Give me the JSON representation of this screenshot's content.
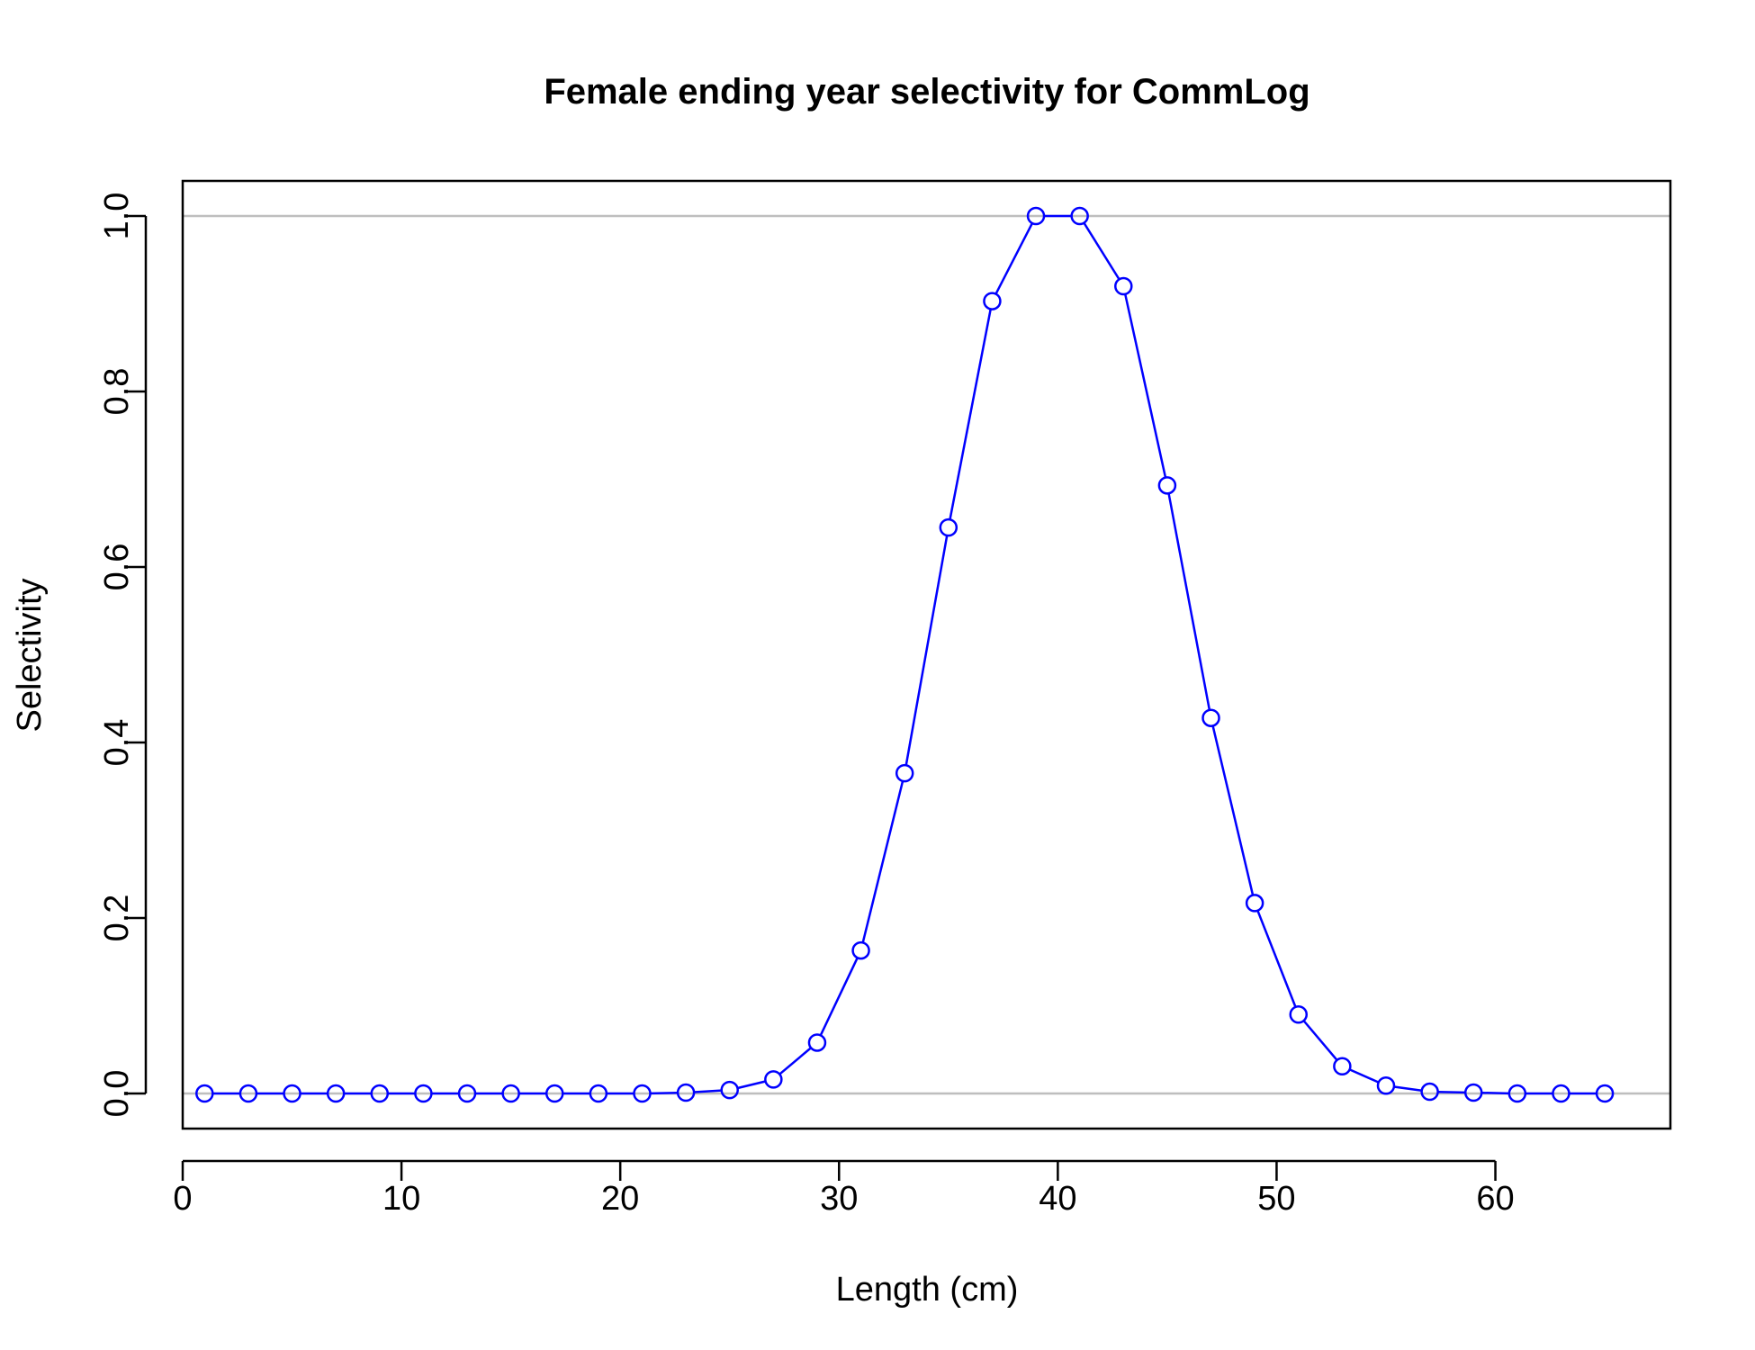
{
  "chart_data": {
    "type": "line",
    "title": "Female ending year selectivity for CommLog",
    "xlabel": "Length (cm)",
    "ylabel": "Selectivity",
    "xlim": [
      0,
      68
    ],
    "ylim": [
      -0.04,
      1.04
    ],
    "xticks": [
      "0",
      "10",
      "20",
      "30",
      "40",
      "50",
      "60"
    ],
    "yticks": [
      "0.0",
      "0.2",
      "0.4",
      "0.6",
      "0.8",
      "1.0"
    ],
    "reference_lines_y": [
      0,
      1
    ],
    "grid": false,
    "legend": "none",
    "series": [
      {
        "color": "#0000ff",
        "marker": "open-circle",
        "x": [
          1,
          3,
          5,
          7,
          9,
          11,
          13,
          15,
          17,
          19,
          21,
          23,
          25,
          27,
          29,
          31,
          33,
          35,
          37,
          39,
          41,
          43,
          45,
          47,
          49,
          51,
          53,
          55,
          57,
          59,
          61,
          63,
          65
        ],
        "y": [
          0,
          0,
          0,
          0,
          0,
          0,
          0,
          0,
          0,
          0,
          0,
          0.001,
          0.004,
          0.016,
          0.058,
          0.163,
          0.365,
          0.645,
          0.903,
          1.0,
          1.0,
          0.92,
          0.693,
          0.428,
          0.217,
          0.09,
          0.031,
          0.009,
          0.002,
          0.001,
          0,
          0,
          0
        ]
      }
    ],
    "colors": {
      "series": "#0000ff",
      "reference_line": "#bebebe",
      "axis": "#000000"
    }
  }
}
